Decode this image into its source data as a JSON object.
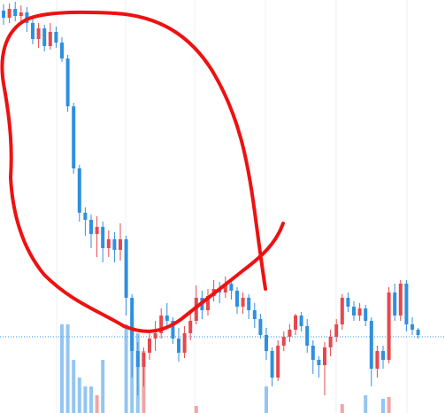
{
  "chart_data": {
    "type": "candlestick",
    "ylim": [
      0,
      466
    ],
    "up_color": "#e5484d",
    "down_color": "#2f8fe0",
    "volume_up_color": "#f2a4a6",
    "volume_down_color": "#93c6f2",
    "price_line": 86,
    "price_line_color": "#2f8fe0",
    "candles": [
      [
        454,
        461,
        438,
        446
      ],
      [
        446,
        462,
        440,
        456
      ],
      [
        456,
        464,
        442,
        448
      ],
      [
        448,
        460,
        440,
        452
      ],
      [
        452,
        458,
        430,
        440
      ],
      [
        440,
        446,
        416,
        422
      ],
      [
        422,
        440,
        412,
        434
      ],
      [
        434,
        438,
        408,
        414
      ],
      [
        414,
        440,
        410,
        430
      ],
      [
        430,
        436,
        412,
        418
      ],
      [
        418,
        424,
        396,
        400
      ],
      [
        400,
        404,
        340,
        346
      ],
      [
        346,
        350,
        270,
        276
      ],
      [
        276,
        280,
        216,
        226
      ],
      [
        226,
        232,
        200,
        218
      ],
      [
        218,
        224,
        186,
        202
      ],
      [
        202,
        222,
        176,
        210
      ],
      [
        210,
        216,
        170,
        186
      ],
      [
        186,
        206,
        176,
        196
      ],
      [
        196,
        204,
        170,
        184
      ],
      [
        184,
        214,
        172,
        196
      ],
      [
        196,
        200,
        110,
        130
      ],
      [
        130,
        134,
        40,
        70
      ],
      [
        70,
        80,
        20,
        52
      ],
      [
        52,
        74,
        30,
        68
      ],
      [
        68,
        90,
        60,
        84
      ],
      [
        84,
        104,
        70,
        90
      ],
      [
        90,
        118,
        84,
        110
      ],
      [
        110,
        124,
        98,
        104
      ],
      [
        104,
        108,
        78,
        84
      ],
      [
        84,
        96,
        58,
        68
      ],
      [
        68,
        98,
        62,
        90
      ],
      [
        90,
        112,
        82,
        104
      ],
      [
        104,
        144,
        100,
        130
      ],
      [
        130,
        138,
        106,
        116
      ],
      [
        116,
        140,
        110,
        132
      ],
      [
        132,
        150,
        126,
        140
      ],
      [
        140,
        148,
        124,
        136
      ],
      [
        136,
        154,
        130,
        146
      ],
      [
        146,
        152,
        128,
        138
      ],
      [
        138,
        142,
        112,
        120
      ],
      [
        120,
        136,
        112,
        130
      ],
      [
        130,
        134,
        106,
        116
      ],
      [
        116,
        124,
        96,
        106
      ],
      [
        106,
        112,
        84,
        88
      ],
      [
        88,
        96,
        60,
        70
      ],
      [
        70,
        74,
        30,
        40
      ],
      [
        40,
        82,
        36,
        76
      ],
      [
        76,
        92,
        70,
        86
      ],
      [
        86,
        100,
        80,
        94
      ],
      [
        94,
        112,
        88,
        110
      ],
      [
        110,
        114,
        92,
        98
      ],
      [
        98,
        106,
        68,
        76
      ],
      [
        76,
        82,
        44,
        60
      ],
      [
        60,
        64,
        40,
        54
      ],
      [
        54,
        80,
        20,
        74
      ],
      [
        74,
        94,
        64,
        86
      ],
      [
        86,
        106,
        80,
        100
      ],
      [
        100,
        134,
        94,
        130
      ],
      [
        130,
        136,
        114,
        120
      ],
      [
        120,
        126,
        104,
        110
      ],
      [
        110,
        124,
        104,
        118
      ],
      [
        118,
        122,
        98,
        104
      ],
      [
        104,
        108,
        30,
        50
      ],
      [
        50,
        76,
        40,
        70
      ],
      [
        70,
        76,
        50,
        60
      ],
      [
        60,
        142,
        56,
        136
      ],
      [
        136,
        146,
        104,
        110
      ],
      [
        110,
        150,
        104,
        146
      ],
      [
        146,
        150,
        92,
        100
      ],
      [
        100,
        108,
        88,
        94
      ],
      [
        94,
        96,
        84,
        88
      ]
    ],
    "volume": [
      0,
      0,
      0,
      0,
      0,
      0,
      0,
      0,
      0,
      0,
      100,
      100,
      60,
      40,
      30,
      30,
      20,
      60,
      0,
      0,
      0,
      100,
      110,
      90,
      70,
      0,
      0,
      0,
      0,
      0,
      0,
      0,
      0,
      8,
      0,
      0,
      0,
      0,
      0,
      0,
      0,
      0,
      0,
      0,
      0,
      30,
      0,
      0,
      0,
      0,
      0,
      0,
      0,
      0,
      0,
      0,
      0,
      0,
      10,
      0,
      0,
      0,
      20,
      0,
      0,
      16,
      18,
      0,
      0,
      0,
      0,
      0
    ]
  }
}
